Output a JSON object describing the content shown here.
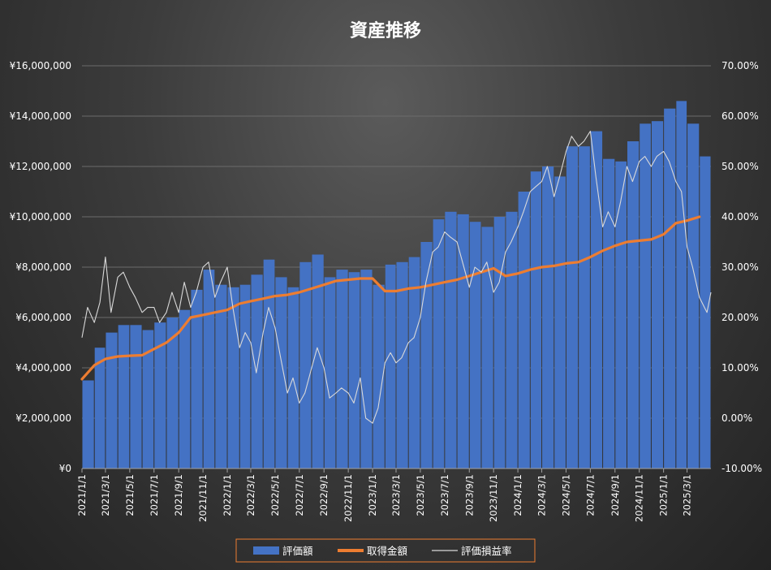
{
  "chart_data": {
    "type": "bar",
    "title": "資産推移",
    "y_left_ticks": [
      "¥0",
      "¥2,000,000",
      "¥4,000,000",
      "¥6,000,000",
      "¥8,000,000",
      "¥10,000,000",
      "¥12,000,000",
      "¥14,000,000",
      "¥16,000,000"
    ],
    "y_left_range": [
      0,
      16000000
    ],
    "y_right_ticks": [
      "-10.00%",
      "0.00%",
      "10.00%",
      "20.00%",
      "30.00%",
      "40.00%",
      "50.00%",
      "60.00%",
      "70.00%"
    ],
    "y_right_range": [
      -10,
      70
    ],
    "x_tick_labels": [
      "2021/1/1",
      "2021/3/1",
      "2021/5/1",
      "2021/7/1",
      "2021/9/1",
      "2021/11/1",
      "2022/1/1",
      "2022/3/1",
      "2022/5/1",
      "2022/7/1",
      "2022/9/1",
      "2022/11/1",
      "2023/1/1",
      "2023/3/1",
      "2023/5/1",
      "2023/7/1",
      "2023/9/1",
      "2023/11/1",
      "2024/1/1",
      "2024/3/1",
      "2024/5/1",
      "2024/7/1",
      "2024/9/1",
      "2024/11/1",
      "2025/1/1",
      "2025/3/1"
    ],
    "x_range": [
      "2021/1/1",
      "2025/4/30"
    ],
    "grid": true,
    "legend_position": "bottom",
    "colors": {
      "valuation": "#4472c4",
      "cost": "#ed7d31",
      "return": "#d9d9d9"
    },
    "series": [
      {
        "name": "評価額",
        "kind": "bar",
        "axis": "left",
        "points": [
          [
            "2021/1/1",
            3500000
          ],
          [
            "2021/2/1",
            4800000
          ],
          [
            "2021/3/1",
            5400000
          ],
          [
            "2021/4/1",
            5700000
          ],
          [
            "2021/5/1",
            5700000
          ],
          [
            "2021/6/1",
            5500000
          ],
          [
            "2021/7/1",
            5800000
          ],
          [
            "2021/8/1",
            6000000
          ],
          [
            "2021/9/1",
            6300000
          ],
          [
            "2021/10/1",
            7100000
          ],
          [
            "2021/11/1",
            7900000
          ],
          [
            "2021/12/1",
            7300000
          ],
          [
            "2022/1/1",
            7200000
          ],
          [
            "2022/2/1",
            7300000
          ],
          [
            "2022/3/1",
            7700000
          ],
          [
            "2022/4/1",
            8300000
          ],
          [
            "2022/5/1",
            7600000
          ],
          [
            "2022/6/1",
            7200000
          ],
          [
            "2022/7/1",
            8200000
          ],
          [
            "2022/8/1",
            8500000
          ],
          [
            "2022/9/1",
            7600000
          ],
          [
            "2022/10/1",
            7900000
          ],
          [
            "2022/11/1",
            7800000
          ],
          [
            "2022/12/1",
            7900000
          ],
          [
            "2023/1/1",
            7300000
          ],
          [
            "2023/2/1",
            8100000
          ],
          [
            "2023/3/1",
            8200000
          ],
          [
            "2023/4/1",
            8400000
          ],
          [
            "2023/5/1",
            9000000
          ],
          [
            "2023/6/1",
            9900000
          ],
          [
            "2023/7/1",
            10200000
          ],
          [
            "2023/8/1",
            10100000
          ],
          [
            "2023/9/1",
            9800000
          ],
          [
            "2023/10/1",
            9600000
          ],
          [
            "2023/11/1",
            10000000
          ],
          [
            "2023/12/1",
            10200000
          ],
          [
            "2024/1/1",
            11000000
          ],
          [
            "2024/2/1",
            11800000
          ],
          [
            "2024/3/1",
            12000000
          ],
          [
            "2024/4/1",
            11600000
          ],
          [
            "2024/5/1",
            12800000
          ],
          [
            "2024/6/1",
            12800000
          ],
          [
            "2024/7/1",
            13400000
          ],
          [
            "2024/8/1",
            12300000
          ],
          [
            "2024/9/1",
            12200000
          ],
          [
            "2024/10/1",
            13000000
          ],
          [
            "2024/11/1",
            13700000
          ],
          [
            "2024/12/1",
            13800000
          ],
          [
            "2025/1/1",
            14300000
          ],
          [
            "2025/2/1",
            14600000
          ],
          [
            "2025/3/1",
            13700000
          ],
          [
            "2025/4/1",
            12400000
          ]
        ]
      },
      {
        "name": "取得金額",
        "kind": "line",
        "axis": "left",
        "points": [
          [
            "2021/1/1",
            3550000
          ],
          [
            "2021/2/1",
            4100000
          ],
          [
            "2021/3/1",
            4350000
          ],
          [
            "2021/4/1",
            4450000
          ],
          [
            "2021/5/1",
            4480000
          ],
          [
            "2021/6/1",
            4500000
          ],
          [
            "2021/7/1",
            4750000
          ],
          [
            "2021/8/1",
            5000000
          ],
          [
            "2021/9/1",
            5400000
          ],
          [
            "2021/10/1",
            6000000
          ],
          [
            "2021/11/1",
            6100000
          ],
          [
            "2021/12/1",
            6200000
          ],
          [
            "2022/1/1",
            6300000
          ],
          [
            "2022/2/1",
            6550000
          ],
          [
            "2022/3/1",
            6650000
          ],
          [
            "2022/4/1",
            6750000
          ],
          [
            "2022/5/1",
            6850000
          ],
          [
            "2022/6/1",
            6900000
          ],
          [
            "2022/7/1",
            7000000
          ],
          [
            "2022/8/1",
            7150000
          ],
          [
            "2022/9/1",
            7300000
          ],
          [
            "2022/10/1",
            7450000
          ],
          [
            "2022/11/1",
            7500000
          ],
          [
            "2022/12/1",
            7550000
          ],
          [
            "2023/1/1",
            7550000
          ],
          [
            "2023/2/1",
            7050000
          ],
          [
            "2023/3/1",
            7050000
          ],
          [
            "2023/4/1",
            7150000
          ],
          [
            "2023/5/1",
            7200000
          ],
          [
            "2023/6/1",
            7300000
          ],
          [
            "2023/7/1",
            7400000
          ],
          [
            "2023/8/1",
            7500000
          ],
          [
            "2023/9/1",
            7650000
          ],
          [
            "2023/10/1",
            7800000
          ],
          [
            "2023/11/1",
            7950000
          ],
          [
            "2023/12/1",
            7650000
          ],
          [
            "2024/1/1",
            7750000
          ],
          [
            "2024/2/1",
            7900000
          ],
          [
            "2024/3/1",
            8000000
          ],
          [
            "2024/4/1",
            8050000
          ],
          [
            "2024/5/1",
            8150000
          ],
          [
            "2024/6/1",
            8200000
          ],
          [
            "2024/7/1",
            8400000
          ],
          [
            "2024/8/1",
            8650000
          ],
          [
            "2024/9/1",
            8850000
          ],
          [
            "2024/10/1",
            9000000
          ],
          [
            "2024/11/1",
            9050000
          ],
          [
            "2024/12/1",
            9100000
          ],
          [
            "2025/1/1",
            9300000
          ],
          [
            "2025/2/1",
            9750000
          ],
          [
            "2025/3/1",
            9850000
          ],
          [
            "2025/4/1",
            10000000
          ]
        ]
      },
      {
        "name": "評価損益率",
        "kind": "line",
        "axis": "right",
        "points": [
          [
            "2021/1/1",
            16
          ],
          [
            "2021/1/15",
            22
          ],
          [
            "2021/2/1",
            19
          ],
          [
            "2021/2/15",
            23
          ],
          [
            "2021/3/1",
            32
          ],
          [
            "2021/3/15",
            21
          ],
          [
            "2021/4/1",
            28
          ],
          [
            "2021/4/15",
            29
          ],
          [
            "2021/5/1",
            26
          ],
          [
            "2021/5/15",
            24
          ],
          [
            "2021/6/1",
            21
          ],
          [
            "2021/6/15",
            22
          ],
          [
            "2021/7/1",
            22
          ],
          [
            "2021/7/15",
            19
          ],
          [
            "2021/8/1",
            21
          ],
          [
            "2021/8/15",
            25
          ],
          [
            "2021/9/1",
            21
          ],
          [
            "2021/9/15",
            27
          ],
          [
            "2021/10/1",
            22
          ],
          [
            "2021/10/15",
            25
          ],
          [
            "2021/11/1",
            30
          ],
          [
            "2021/11/15",
            31
          ],
          [
            "2021/12/1",
            24
          ],
          [
            "2021/12/15",
            27
          ],
          [
            "2022/1/1",
            30
          ],
          [
            "2022/1/15",
            22
          ],
          [
            "2022/2/1",
            14
          ],
          [
            "2022/2/15",
            17
          ],
          [
            "2022/3/1",
            15
          ],
          [
            "2022/3/15",
            9
          ],
          [
            "2022/4/1",
            17
          ],
          [
            "2022/4/15",
            22
          ],
          [
            "2022/5/1",
            18
          ],
          [
            "2022/5/15",
            12
          ],
          [
            "2022/6/1",
            5
          ],
          [
            "2022/6/15",
            8
          ],
          [
            "2022/7/1",
            3
          ],
          [
            "2022/7/15",
            5
          ],
          [
            "2022/8/1",
            10
          ],
          [
            "2022/8/15",
            14
          ],
          [
            "2022/9/1",
            10
          ],
          [
            "2022/9/15",
            4
          ],
          [
            "2022/10/1",
            5
          ],
          [
            "2022/10/15",
            6
          ],
          [
            "2022/11/1",
            5
          ],
          [
            "2022/11/15",
            3
          ],
          [
            "2022/12/1",
            8
          ],
          [
            "2022/12/15",
            0
          ],
          [
            "2023/1/1",
            -1
          ],
          [
            "2023/1/15",
            2
          ],
          [
            "2023/2/1",
            11
          ],
          [
            "2023/2/15",
            13
          ],
          [
            "2023/3/1",
            11
          ],
          [
            "2023/3/15",
            12
          ],
          [
            "2023/4/1",
            15
          ],
          [
            "2023/4/15",
            16
          ],
          [
            "2023/5/1",
            20
          ],
          [
            "2023/5/15",
            27
          ],
          [
            "2023/6/1",
            33
          ],
          [
            "2023/6/15",
            34
          ],
          [
            "2023/7/1",
            37
          ],
          [
            "2023/7/15",
            36
          ],
          [
            "2023/8/1",
            35
          ],
          [
            "2023/8/15",
            31
          ],
          [
            "2023/9/1",
            26
          ],
          [
            "2023/9/15",
            30
          ],
          [
            "2023/10/1",
            29
          ],
          [
            "2023/10/15",
            31
          ],
          [
            "2023/11/1",
            25
          ],
          [
            "2023/11/15",
            27
          ],
          [
            "2023/12/1",
            33
          ],
          [
            "2023/12/15",
            35
          ],
          [
            "2024/1/1",
            38
          ],
          [
            "2024/1/15",
            41
          ],
          [
            "2024/2/1",
            45
          ],
          [
            "2024/2/15",
            46
          ],
          [
            "2024/3/1",
            47
          ],
          [
            "2024/3/15",
            50
          ],
          [
            "2024/4/1",
            44
          ],
          [
            "2024/4/15",
            48
          ],
          [
            "2024/5/1",
            53
          ],
          [
            "2024/5/15",
            56
          ],
          [
            "2024/6/1",
            54
          ],
          [
            "2024/6/15",
            55
          ],
          [
            "2024/7/1",
            57
          ],
          [
            "2024/7/15",
            48
          ],
          [
            "2024/8/1",
            38
          ],
          [
            "2024/8/15",
            41
          ],
          [
            "2024/9/1",
            38
          ],
          [
            "2024/9/15",
            43
          ],
          [
            "2024/10/1",
            50
          ],
          [
            "2024/10/15",
            47
          ],
          [
            "2024/11/1",
            51
          ],
          [
            "2024/11/15",
            52
          ],
          [
            "2024/12/1",
            50
          ],
          [
            "2024/12/15",
            52
          ],
          [
            "2025/1/1",
            53
          ],
          [
            "2025/1/15",
            51
          ],
          [
            "2025/2/1",
            47
          ],
          [
            "2025/2/15",
            45
          ],
          [
            "2025/3/1",
            34
          ],
          [
            "2025/3/15",
            30
          ],
          [
            "2025/4/1",
            24
          ],
          [
            "2025/4/20",
            21
          ],
          [
            "2025/4/30",
            25
          ]
        ]
      }
    ]
  }
}
